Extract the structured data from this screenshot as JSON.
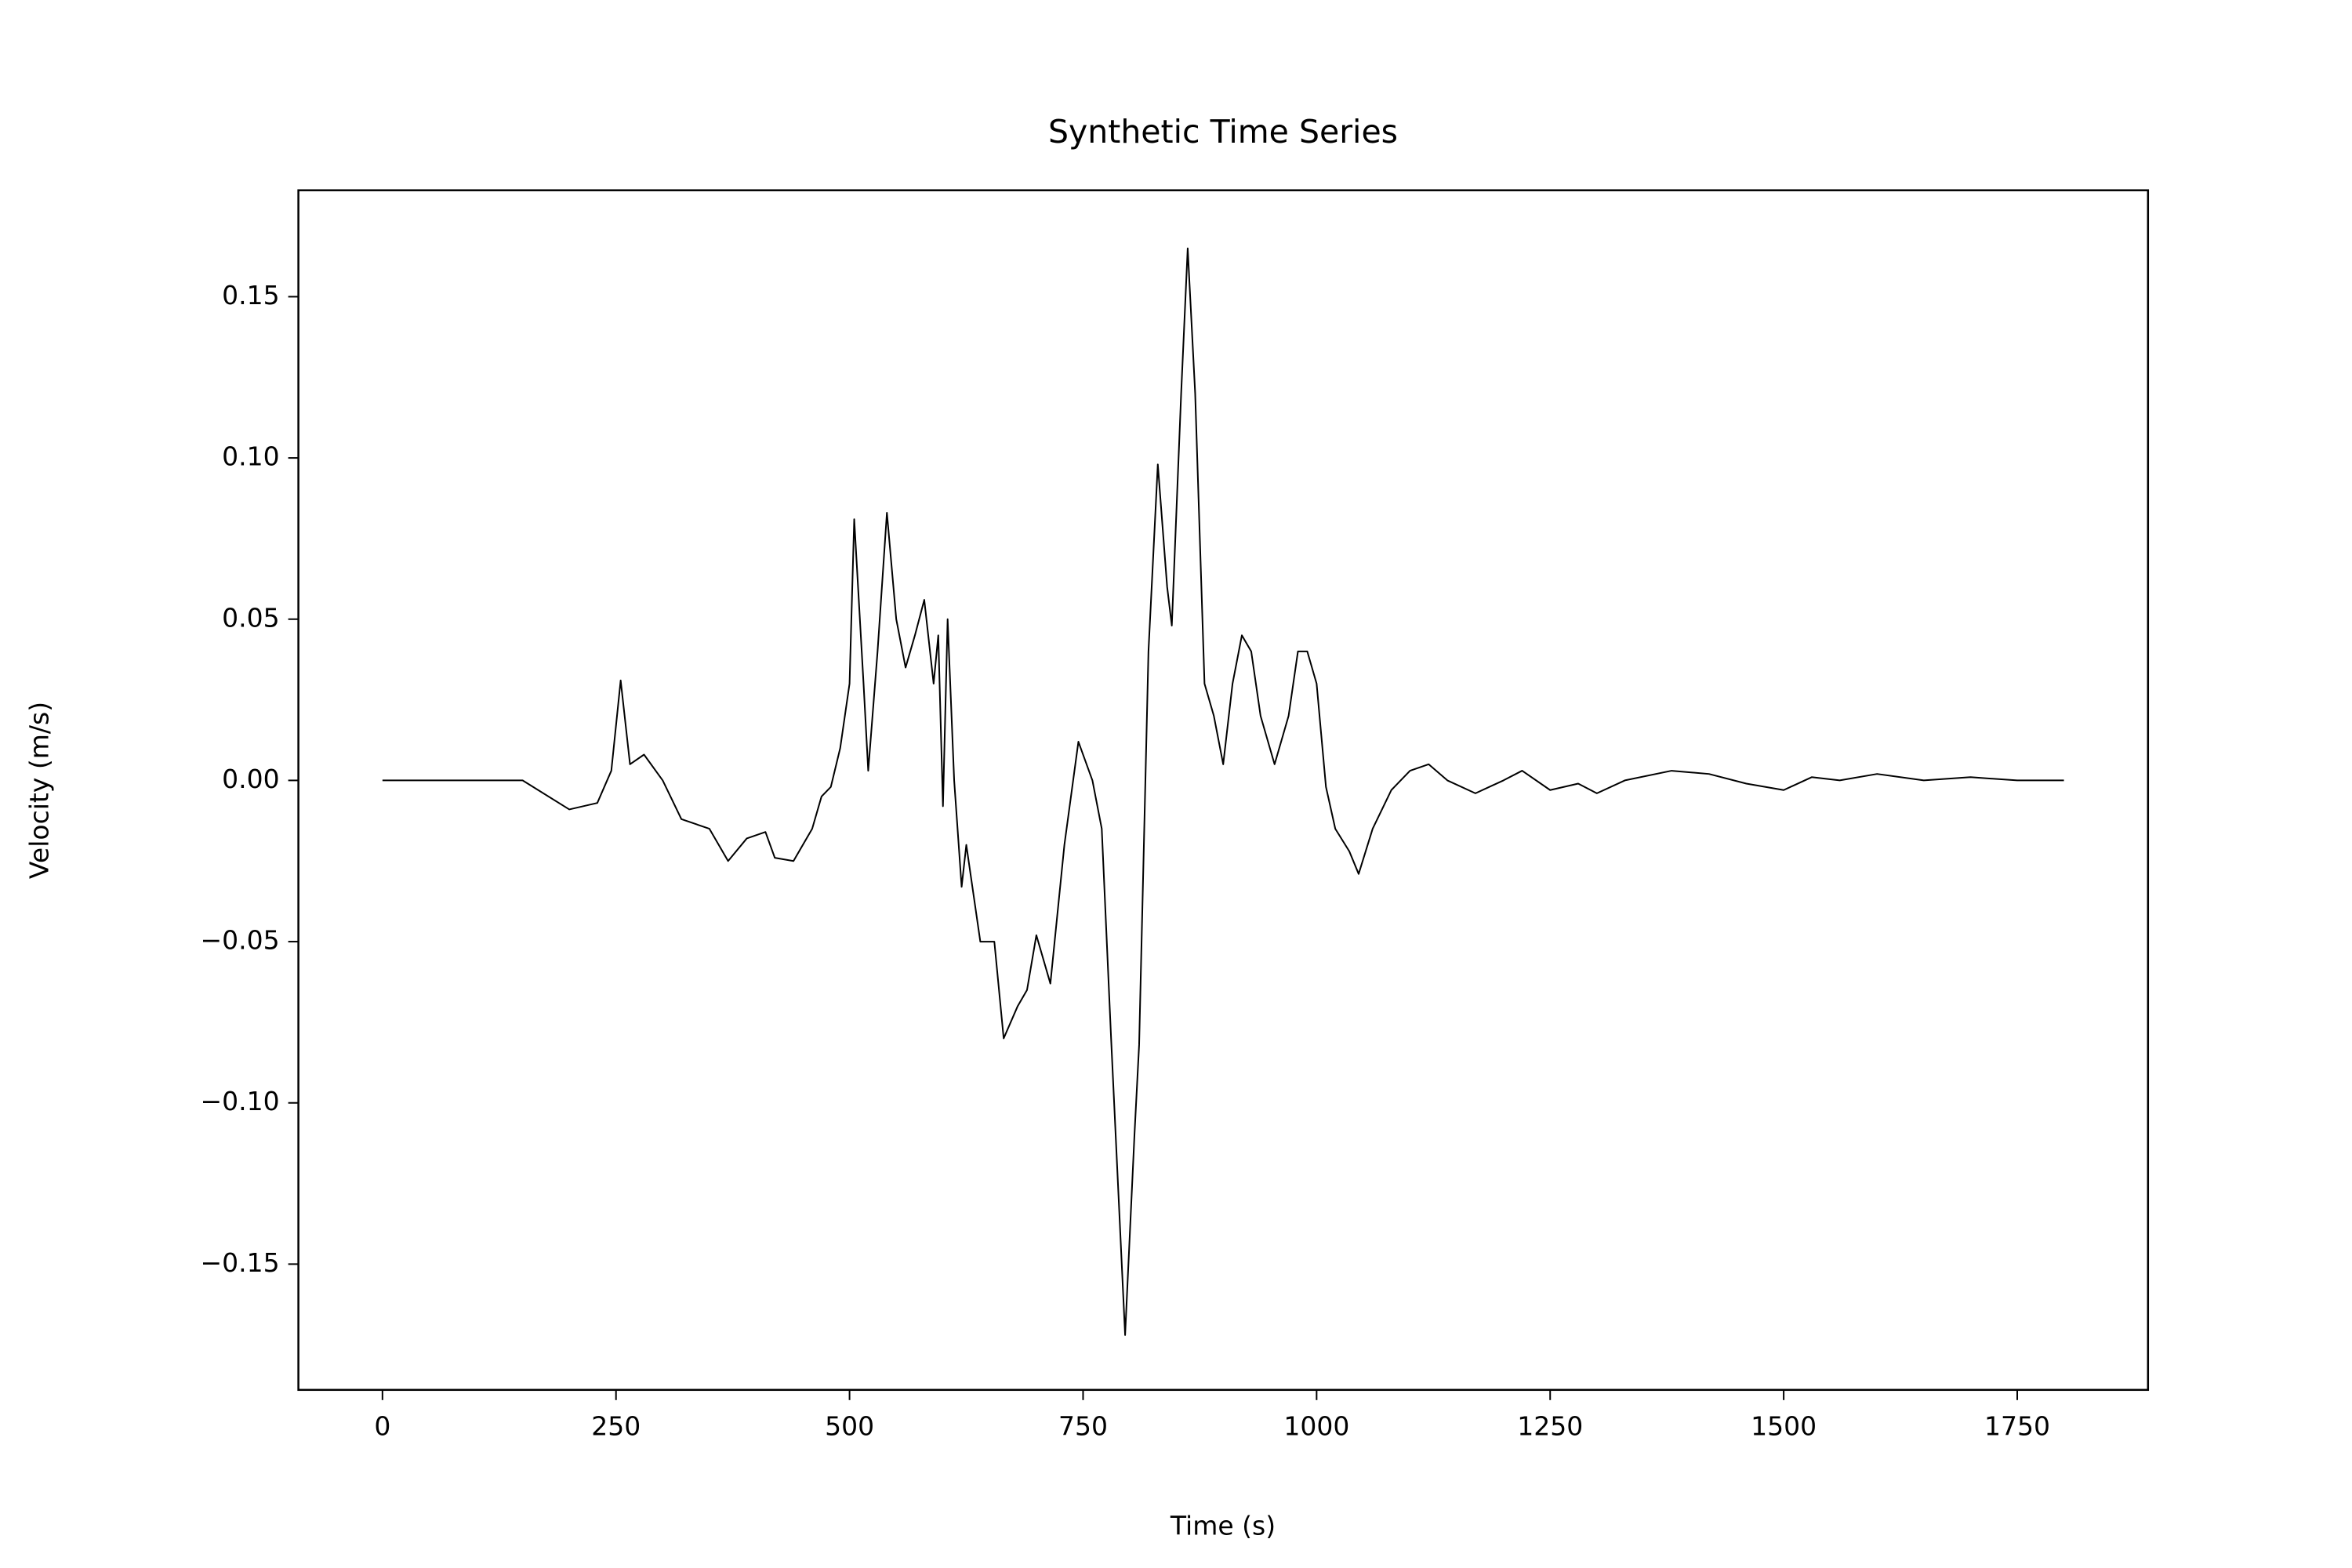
{
  "chart_data": {
    "type": "line",
    "title": "Synthetic Time Series",
    "x_label": "Time (s)",
    "y_label": "Velocity (m/s)",
    "x": [
      0,
      150,
      200,
      230,
      245,
      255,
      265,
      280,
      300,
      320,
      350,
      370,
      390,
      410,
      420,
      440,
      460,
      470,
      480,
      490,
      500,
      505,
      515,
      520,
      530,
      540,
      550,
      560,
      570,
      580,
      590,
      595,
      600,
      605,
      612,
      620,
      625,
      640,
      655,
      665,
      680,
      690,
      700,
      715,
      730,
      745,
      760,
      770,
      780,
      795,
      805,
      810,
      820,
      830,
      840,
      845,
      855,
      862,
      870,
      880,
      890,
      900,
      910,
      920,
      930,
      940,
      955,
      970,
      980,
      990,
      1000,
      1010,
      1020,
      1035,
      1045,
      1060,
      1080,
      1100,
      1120,
      1140,
      1170,
      1200,
      1220,
      1250,
      1280,
      1300,
      1330,
      1380,
      1420,
      1460,
      1500,
      1530,
      1560,
      1600,
      1650,
      1700,
      1750,
      1800
    ],
    "series": [
      {
        "name": "Velocity",
        "color": "#000000",
        "values": [
          0,
          0,
          -0.009,
          -0.007,
          0.003,
          0.031,
          0.005,
          0.008,
          0.0,
          -0.012,
          -0.015,
          -0.025,
          -0.018,
          -0.016,
          -0.024,
          -0.025,
          -0.015,
          -0.005,
          -0.002,
          0.01,
          0.03,
          0.081,
          0.03,
          0.003,
          0.04,
          0.083,
          0.05,
          0.035,
          0.045,
          0.056,
          0.03,
          0.045,
          -0.008,
          0.05,
          0.0,
          -0.033,
          -0.02,
          -0.05,
          -0.05,
          -0.08,
          -0.07,
          -0.065,
          -0.048,
          -0.063,
          -0.02,
          0.012,
          0.0,
          -0.015,
          -0.08,
          -0.172,
          -0.11,
          -0.082,
          0.04,
          0.098,
          0.06,
          0.048,
          0.12,
          0.165,
          0.12,
          0.03,
          0.02,
          0.005,
          0.03,
          0.045,
          0.04,
          0.02,
          0.005,
          0.02,
          0.04,
          0.04,
          0.03,
          -0.002,
          -0.015,
          -0.022,
          -0.029,
          -0.015,
          -0.003,
          0.003,
          0.005,
          0.0,
          -0.004,
          0.0,
          0.003,
          -0.003,
          -0.001,
          -0.004,
          0.0,
          0.003,
          0.002,
          -0.001,
          -0.003,
          0.001,
          0.0,
          0.002,
          0.0,
          0.001,
          0.0,
          0.0
        ]
      }
    ],
    "xlim": [
      -90,
      1890
    ],
    "ylim": [
      -0.189,
      0.183
    ],
    "xticks": [
      0,
      250,
      500,
      750,
      1000,
      1250,
      1500,
      1750
    ],
    "yticks": [
      {
        "value": -0.15,
        "label": "−0.15"
      },
      {
        "value": -0.1,
        "label": "−0.10"
      },
      {
        "value": -0.05,
        "label": "−0.05"
      },
      {
        "value": 0,
        "label": "0.00"
      },
      0.05,
      {
        "value": 0.1,
        "label": "0.10"
      },
      0.15
    ],
    "grid": false
  }
}
